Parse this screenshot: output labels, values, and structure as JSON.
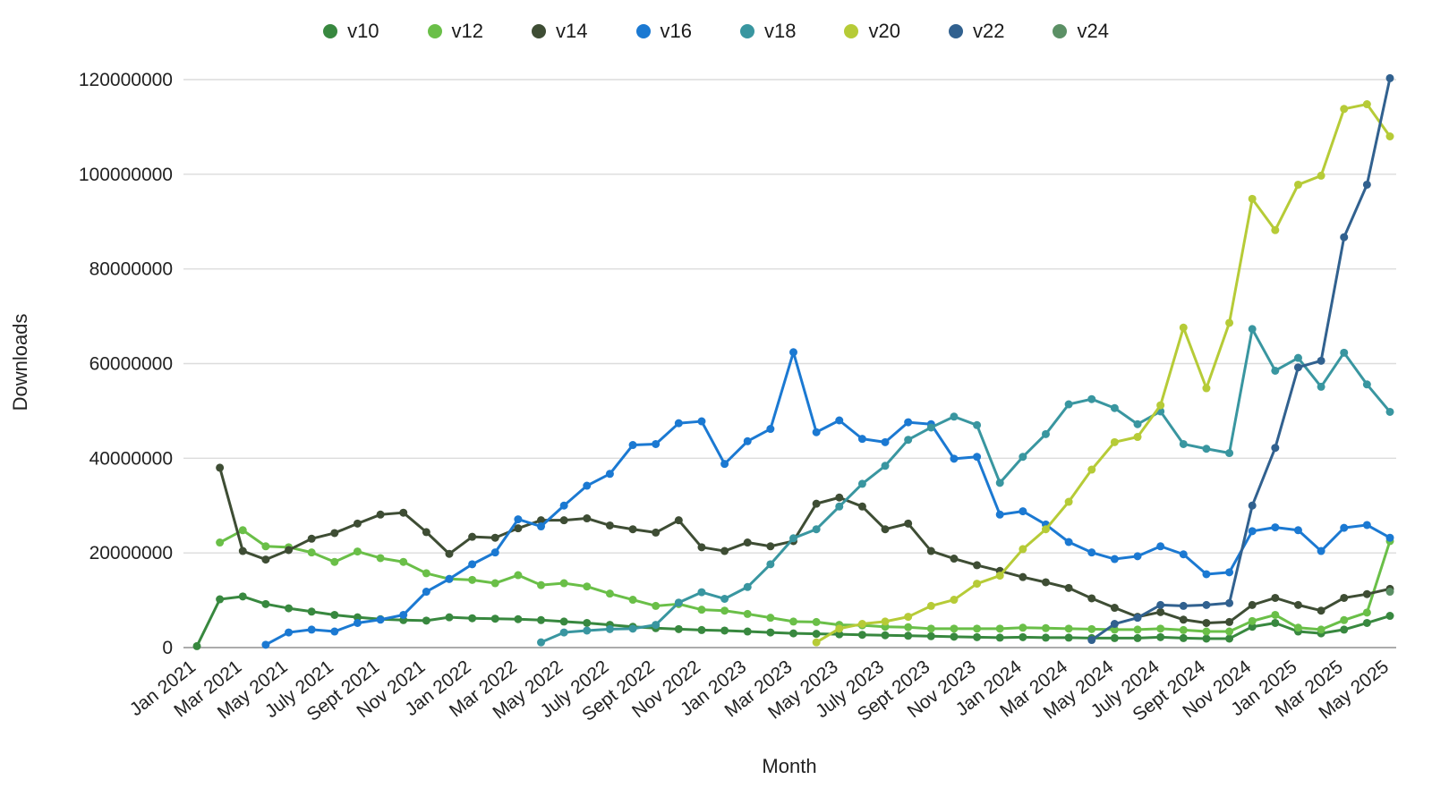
{
  "chart_data": {
    "type": "line",
    "title": "",
    "xlabel": "Month",
    "ylabel": "Downloads",
    "ylim": [
      0,
      120000000
    ],
    "y_ticks": [
      0,
      20000000,
      40000000,
      60000000,
      80000000,
      100000000,
      120000000
    ],
    "grid": "horizontal",
    "legend_position": "top-center",
    "x": [
      "Jan 2021",
      "Feb 2021",
      "Mar 2021",
      "Apr 2021",
      "May 2021",
      "Jun 2021",
      "Jul 2021",
      "Aug 2021",
      "Sep 2021",
      "Oct 2021",
      "Nov 2021",
      "Dec 2021",
      "Jan 2022",
      "Feb 2022",
      "Mar 2022",
      "Apr 2022",
      "May 2022",
      "Jun 2022",
      "Jul 2022",
      "Aug 2022",
      "Sep 2022",
      "Oct 2022",
      "Nov 2022",
      "Dec 2022",
      "Jan 2023",
      "Feb 2023",
      "Mar 2023",
      "Apr 2023",
      "May 2023",
      "Jun 2023",
      "Jul 2023",
      "Aug 2023",
      "Sep 2023",
      "Oct 2023",
      "Nov 2023",
      "Dec 2023",
      "Jan 2024",
      "Feb 2024",
      "Mar 2024",
      "Apr 2024",
      "May 2024",
      "Jun 2024",
      "Jul 2024",
      "Aug 2024",
      "Sep 2024",
      "Oct 2024",
      "Nov 2024",
      "Dec 2024",
      "Jan 2025",
      "Feb 2025",
      "Mar 2025",
      "Apr 2025",
      "May 2025"
    ],
    "x_tick_labels": [
      "Jan 2021",
      "Mar 2021",
      "May 2021",
      "July 2021",
      "Sept 2021",
      "Nov 2021",
      "Jan 2022",
      "Mar 2022",
      "May 2022",
      "July 2022",
      "Sept 2022",
      "Nov 2022",
      "Jan 2023",
      "Mar 2023",
      "May 2023",
      "July 2023",
      "Sept 2023",
      "Nov 2023",
      "Jan 2024",
      "Mar 2024",
      "May 2024",
      "July 2024",
      "Sept 2024",
      "Nov 2024",
      "Jan 2025",
      "Mar 2025",
      "May 2025"
    ],
    "x_tick_every": 2,
    "series": [
      {
        "name": "v10",
        "color": "#38883f",
        "values": [
          300000,
          10200000,
          10800000,
          9200000,
          8300000,
          7600000,
          6900000,
          6400000,
          6000000,
          5800000,
          5700000,
          6400000,
          6200000,
          6100000,
          6000000,
          5800000,
          5500000,
          5200000,
          4800000,
          4400000,
          4100000,
          3900000,
          3700000,
          3600000,
          3400000,
          3200000,
          3000000,
          2900000,
          2800000,
          2700000,
          2600000,
          2500000,
          2400000,
          2300000,
          2200000,
          2100000,
          2200000,
          2100000,
          2100000,
          2000000,
          2000000,
          2000000,
          2200000,
          2000000,
          1900000,
          1900000,
          4400000,
          5200000,
          3400000,
          3000000,
          3800000,
          5200000,
          6700000
        ]
      },
      {
        "name": "v12",
        "color": "#6abf48",
        "values": [
          null,
          22200000,
          24800000,
          21400000,
          21200000,
          20100000,
          18100000,
          20300000,
          18900000,
          18100000,
          15700000,
          14500000,
          14300000,
          13600000,
          15300000,
          13200000,
          13600000,
          12900000,
          11400000,
          10100000,
          8800000,
          9200000,
          8000000,
          7800000,
          7100000,
          6300000,
          5500000,
          5400000,
          4800000,
          4700000,
          4400000,
          4300000,
          4000000,
          4000000,
          4000000,
          4000000,
          4200000,
          4100000,
          4000000,
          3900000,
          3800000,
          3800000,
          4000000,
          3700000,
          3400000,
          3400000,
          5600000,
          6900000,
          4200000,
          3800000,
          5800000,
          7400000,
          22500000
        ]
      },
      {
        "name": "v14",
        "color": "#3e4d34",
        "values": [
          null,
          38000000,
          20400000,
          18600000,
          20600000,
          23000000,
          24200000,
          26200000,
          28100000,
          28500000,
          24400000,
          19800000,
          23400000,
          23200000,
          25200000,
          26900000,
          26900000,
          27300000,
          25800000,
          25000000,
          24300000,
          26900000,
          21200000,
          20400000,
          22200000,
          21400000,
          22500000,
          30400000,
          31700000,
          29800000,
          25000000,
          26200000,
          20400000,
          18800000,
          17400000,
          16200000,
          14900000,
          13800000,
          12600000,
          10400000,
          8400000,
          6500000,
          7500000,
          5900000,
          5200000,
          5400000,
          9000000,
          10500000,
          9000000,
          7800000,
          10500000,
          11300000,
          12400000
        ]
      },
      {
        "name": "v16",
        "color": "#1b79d2",
        "values": [
          null,
          null,
          null,
          600000,
          3200000,
          3800000,
          3400000,
          5200000,
          5900000,
          6900000,
          11800000,
          14500000,
          17600000,
          20100000,
          27100000,
          25600000,
          30000000,
          34200000,
          36700000,
          42800000,
          43000000,
          47400000,
          47800000,
          38800000,
          43600000,
          46200000,
          62400000,
          45500000,
          48000000,
          44100000,
          43400000,
          47600000,
          47200000,
          39900000,
          40300000,
          28100000,
          28800000,
          26000000,
          22300000,
          20100000,
          18700000,
          19300000,
          21400000,
          19700000,
          15500000,
          15900000,
          24600000,
          25400000,
          24800000,
          20400000,
          25300000,
          25900000,
          23200000
        ]
      },
      {
        "name": "v18",
        "color": "#3996a0",
        "values": [
          null,
          null,
          null,
          null,
          null,
          null,
          null,
          null,
          null,
          null,
          null,
          null,
          null,
          null,
          null,
          1100000,
          3200000,
          3600000,
          3900000,
          4000000,
          4800000,
          9500000,
          11700000,
          10300000,
          12800000,
          17600000,
          23100000,
          25000000,
          29800000,
          34600000,
          38400000,
          43900000,
          46500000,
          48800000,
          47000000,
          34800000,
          40300000,
          45100000,
          51400000,
          52500000,
          50600000,
          47200000,
          49900000,
          43000000,
          42000000,
          41100000,
          67300000,
          58500000,
          61200000,
          55100000,
          62300000,
          55600000,
          49800000
        ]
      },
      {
        "name": "v20",
        "color": "#b6cb37",
        "values": [
          null,
          null,
          null,
          null,
          null,
          null,
          null,
          null,
          null,
          null,
          null,
          null,
          null,
          null,
          null,
          null,
          null,
          null,
          null,
          null,
          null,
          null,
          null,
          null,
          null,
          null,
          null,
          1100000,
          4000000,
          5000000,
          5500000,
          6500000,
          8800000,
          10100000,
          13500000,
          15200000,
          20800000,
          25000000,
          30800000,
          37600000,
          43400000,
          44500000,
          51200000,
          67600000,
          54800000,
          68600000,
          94800000,
          88200000,
          97800000,
          99700000,
          113800000,
          114800000,
          108000000
        ]
      },
      {
        "name": "v22",
        "color": "#31618f",
        "values": [
          null,
          null,
          null,
          null,
          null,
          null,
          null,
          null,
          null,
          null,
          null,
          null,
          null,
          null,
          null,
          null,
          null,
          null,
          null,
          null,
          null,
          null,
          null,
          null,
          null,
          null,
          null,
          null,
          null,
          null,
          null,
          null,
          null,
          null,
          null,
          null,
          null,
          null,
          null,
          1600000,
          5000000,
          6300000,
          9000000,
          8800000,
          9000000,
          9400000,
          30000000,
          42200000,
          59200000,
          60600000,
          86700000,
          97800000,
          120300000
        ]
      },
      {
        "name": "v24",
        "color": "#5b9065",
        "values": [
          null,
          null,
          null,
          null,
          null,
          null,
          null,
          null,
          null,
          null,
          null,
          null,
          null,
          null,
          null,
          null,
          null,
          null,
          null,
          null,
          null,
          null,
          null,
          null,
          null,
          null,
          null,
          null,
          null,
          null,
          null,
          null,
          null,
          null,
          null,
          null,
          null,
          null,
          null,
          null,
          null,
          null,
          null,
          null,
          null,
          null,
          null,
          null,
          null,
          null,
          null,
          null,
          11800000
        ]
      }
    ],
    "style": {
      "grid_color": "#dcdcdc",
      "axis_line_color": "#909090",
      "line_width": 3,
      "marker_radius": 4.5
    }
  }
}
